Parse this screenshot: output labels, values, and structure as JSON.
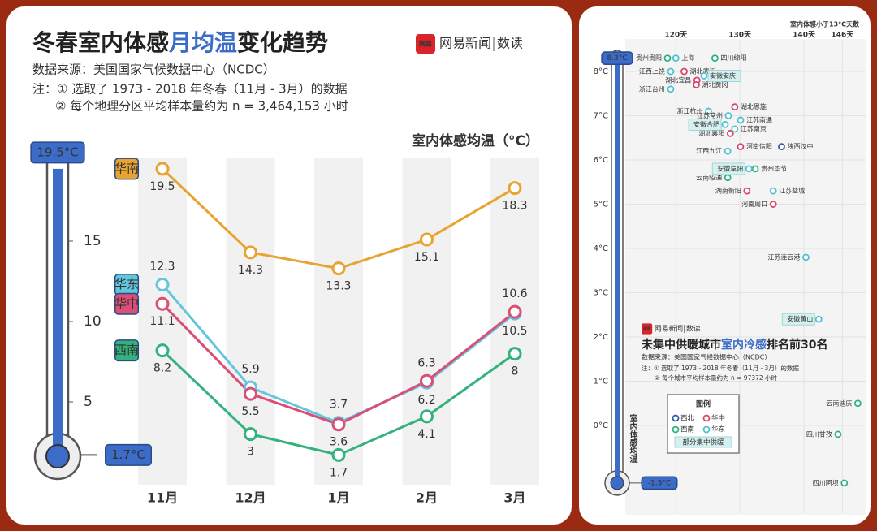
{
  "logo": {
    "icon": "网易",
    "name": "网易新闻",
    "section": "数读"
  },
  "chart_data": [
    {
      "type": "line",
      "title": [
        "冬春室内体感",
        "月均温",
        "变化趋势"
      ],
      "source": "数据来源：美国国家气候数据中心（NCDC）",
      "notes": [
        "注：① 选取了 1973 - 2018 年冬春（11月 - 3月）的数据",
        "② 每个地理分区平均样本量约为 n = 3,464,153 小时"
      ],
      "y_label": "室内体感均温（°C）",
      "categories": [
        "11月",
        "12月",
        "1月",
        "2月",
        "3月"
      ],
      "series": [
        {
          "name": "华南",
          "color": "#e8a330",
          "values": [
            19.5,
            14.3,
            13.3,
            15.1,
            18.3
          ]
        },
        {
          "name": "华东",
          "color": "#62c6dc",
          "values": [
            12.3,
            5.9,
            3.7,
            6.2,
            10.5
          ]
        },
        {
          "name": "华中",
          "color": "#d94f75",
          "values": [
            11.1,
            5.5,
            3.6,
            6.3,
            10.6
          ]
        },
        {
          "name": "西南",
          "color": "#34b27d",
          "values": [
            8.2,
            3.0,
            1.7,
            4.1,
            8.0
          ]
        }
      ],
      "ylim": [
        0,
        20
      ],
      "yticks": [
        5,
        10,
        15
      ],
      "annotations": [
        {
          "value": 19.5,
          "label": "19.5°C"
        },
        {
          "value": 1.7,
          "label": "1.7°C"
        }
      ]
    },
    {
      "type": "scatter",
      "title": [
        "未集中供暖城市",
        "室内冷感",
        "排名前30名"
      ],
      "source": "数据来源：美国国家气候数据中心（NCDC）",
      "notes": [
        "注：① 选取了 1973 - 2018 年冬春（11月 - 3月）的数据",
        "② 每个城市平均样本量约为 n = 97372 小时"
      ],
      "x_label": "室内体感小于13°C天数",
      "y_label": "室内体感均温",
      "legend_title": "图例",
      "legend_partial": "部分集中供暖",
      "series": [
        {
          "name": "西北",
          "color": "#2a5aa8",
          "labels": [
            "陕西汉中"
          ],
          "x": [
            136.5
          ],
          "values": [
            6.3
          ],
          "partial": [
            false
          ]
        },
        {
          "name": "华中",
          "color": "#d6456a",
          "labels": [
            "湖北武汉",
            "湖北宜昌",
            "湖北黄冈",
            "湖北恩施",
            "湖北襄阳",
            "河南信阳",
            "湖南衡阳",
            "河南周口"
          ],
          "x": [
            121.3,
            123.3,
            123.2,
            129.2,
            128.5,
            130.1,
            131.1,
            135.2
          ],
          "values": [
            8.0,
            7.8,
            7.7,
            7.2,
            6.6,
            6.3,
            5.3,
            5.0
          ],
          "partial": [
            false,
            false,
            false,
            false,
            false,
            false,
            false,
            false
          ]
        },
        {
          "name": "西南",
          "color": "#2db37a",
          "labels": [
            "贵州贵阳",
            "四川绵阳",
            "贵州毕节",
            "云南昭通",
            "云南迪庆",
            "四川甘孜",
            "四川阿坝"
          ],
          "x": [
            118.7,
            126.1,
            132.4,
            128.1,
            148.4,
            145.3,
            146.3
          ],
          "values": [
            8.3,
            8.3,
            5.8,
            5.6,
            0.5,
            -0.2,
            -1.3
          ],
          "partial": [
            false,
            false,
            false,
            false,
            false,
            false,
            false
          ]
        },
        {
          "name": "华东",
          "color": "#4fc0d0",
          "labels": [
            "上海",
            "江西上饶",
            "安徽安庆",
            "浙江台州",
            "浙江杭州",
            "江苏常州",
            "江苏南通",
            "安徽合肥",
            "江苏南京",
            "江西九江",
            "安徽阜阳",
            "江苏盐城",
            "江苏连云港",
            "安徽黄山"
          ],
          "x": [
            120.0,
            119.2,
            124.4,
            119.2,
            125.1,
            128.2,
            130.1,
            127.7,
            129.2,
            128.1,
            131.4,
            135.2,
            140.3,
            142.3
          ],
          "values": [
            8.3,
            8.0,
            7.9,
            7.6,
            7.1,
            7.0,
            6.9,
            6.8,
            6.7,
            6.2,
            5.8,
            5.3,
            3.8,
            2.4
          ],
          "partial": [
            false,
            false,
            true,
            false,
            false,
            false,
            false,
            true,
            false,
            false,
            true,
            false,
            false,
            true
          ]
        }
      ],
      "xlim": [
        113,
        150
      ],
      "xticks": [
        {
          "value": 120,
          "label": "120天"
        },
        {
          "value": 130,
          "label": "130天"
        },
        {
          "value": 140,
          "label": "140天"
        },
        {
          "value": 146,
          "label": "146天"
        }
      ],
      "ylim": [
        -1.5,
        8.6
      ],
      "yticks": [
        {
          "value": 0,
          "label": "0°C"
        },
        {
          "value": 1,
          "label": "1°C"
        },
        {
          "value": 2,
          "label": "2°C"
        },
        {
          "value": 3,
          "label": "3°C"
        },
        {
          "value": 4,
          "label": "4°C"
        },
        {
          "value": 5,
          "label": "5°C"
        },
        {
          "value": 6,
          "label": "6°C"
        },
        {
          "value": 7,
          "label": "7°C"
        },
        {
          "value": 8,
          "label": "8°C"
        }
      ],
      "annotations": [
        {
          "value": 8.3,
          "label": "8.3°C"
        },
        {
          "value": -1.3,
          "label": "-1.3°C"
        }
      ],
      "grid": true
    }
  ]
}
